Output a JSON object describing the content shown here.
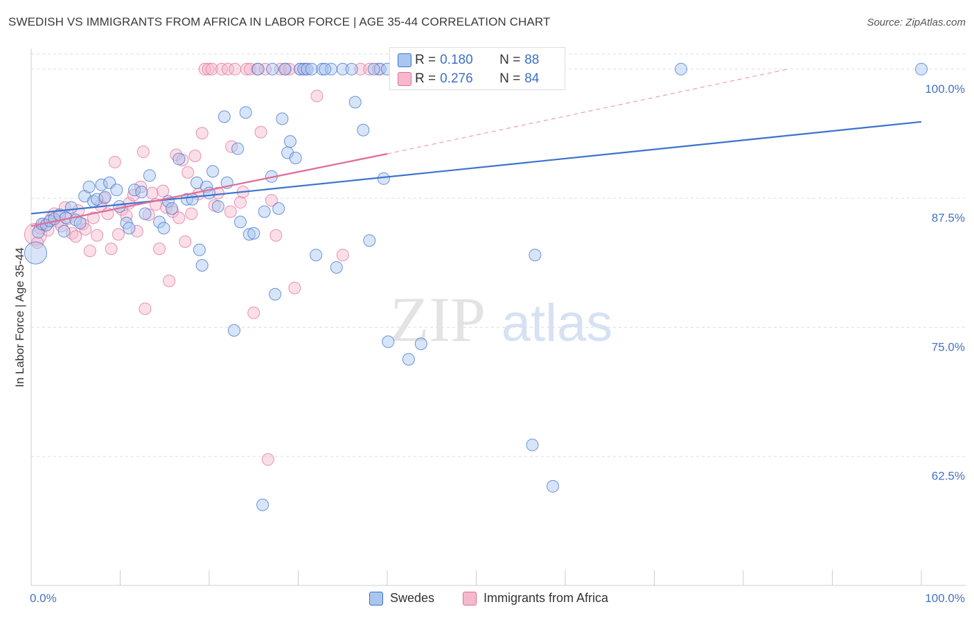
{
  "title": "SWEDISH VS IMMIGRANTS FROM AFRICA IN LABOR FORCE | AGE 35-44 CORRELATION CHART",
  "source": "Source: ZipAtlas.com",
  "watermark": {
    "zip": "ZIP",
    "atlas": "atlas"
  },
  "stats": [
    {
      "r_label": "R = ",
      "r_value": "0.180",
      "n_label": "N = ",
      "n_value": "88"
    },
    {
      "r_label": "R = ",
      "r_value": "0.276",
      "n_label": "N = ",
      "n_value": "84"
    }
  ],
  "legend": {
    "swedes": "Swedes",
    "africa": "Immigrants from Africa"
  },
  "colors": {
    "blue": "#3b72cf",
    "blue_fill": "#a9c6ef",
    "pink": "#e07099",
    "pink_fill": "#f5b8cc",
    "grid": "#dddddd",
    "axis_text": "#4472c4"
  },
  "chart_data": {
    "type": "scatter",
    "title": "SWEDISH VS IMMIGRANTS FROM AFRICA IN LABOR FORCE | AGE 35-44 CORRELATION CHART",
    "xlabel": "",
    "ylabel": "In Labor Force | Age 35-44",
    "xlim": [
      0,
      100
    ],
    "ylim": [
      50,
      102
    ],
    "x_tick_labels": [
      "0.0%",
      "100.0%"
    ],
    "y_ticks": [
      {
        "value": 100.0,
        "label": "100.0%"
      },
      {
        "value": 87.5,
        "label": "87.5%"
      },
      {
        "value": 75.0,
        "label": "75.0%"
      },
      {
        "value": 62.5,
        "label": "62.5%"
      }
    ],
    "series": [
      {
        "name": "Swedes",
        "r": 0.18,
        "n": 88,
        "trend": {
          "x": [
            0,
            100
          ],
          "y": [
            86.0,
            94.9
          ]
        },
        "points": [
          [
            0.5,
            82.2
          ],
          [
            0.8,
            84.2
          ],
          [
            1.2,
            85.0
          ],
          [
            1.7,
            84.9
          ],
          [
            2.1,
            85.3
          ],
          [
            2.6,
            85.5
          ],
          [
            3.2,
            85.9
          ],
          [
            3.7,
            84.3
          ],
          [
            3.9,
            85.6
          ],
          [
            4.5,
            86.6
          ],
          [
            5.0,
            85.4
          ],
          [
            5.5,
            85.1
          ],
          [
            6.0,
            87.7
          ],
          [
            6.5,
            88.6
          ],
          [
            7.0,
            87.2
          ],
          [
            7.4,
            87.4
          ],
          [
            7.9,
            88.8
          ],
          [
            8.3,
            87.6
          ],
          [
            8.8,
            89.0
          ],
          [
            9.6,
            88.3
          ],
          [
            9.9,
            86.7
          ],
          [
            10.7,
            85.1
          ],
          [
            11.0,
            84.6
          ],
          [
            11.6,
            88.3
          ],
          [
            12.4,
            88.1
          ],
          [
            12.8,
            86.0
          ],
          [
            13.3,
            89.7
          ],
          [
            14.4,
            85.2
          ],
          [
            14.9,
            84.6
          ],
          [
            15.4,
            87.2
          ],
          [
            15.8,
            86.5
          ],
          [
            16.6,
            91.3
          ],
          [
            17.5,
            87.4
          ],
          [
            18.1,
            87.4
          ],
          [
            18.6,
            89.0
          ],
          [
            18.9,
            82.5
          ],
          [
            19.2,
            81.0
          ],
          [
            19.7,
            88.6
          ],
          [
            20.0,
            88.0
          ],
          [
            20.4,
            90.1
          ],
          [
            21.0,
            86.7
          ],
          [
            21.7,
            95.4
          ],
          [
            22.0,
            89.0
          ],
          [
            22.8,
            74.7
          ],
          [
            23.2,
            92.3
          ],
          [
            23.5,
            85.2
          ],
          [
            24.1,
            95.8
          ],
          [
            24.5,
            84.0
          ],
          [
            25.0,
            84.1
          ],
          [
            26.0,
            57.8
          ],
          [
            26.2,
            86.2
          ],
          [
            27.0,
            89.6
          ],
          [
            27.4,
            78.2
          ],
          [
            27.8,
            86.5
          ],
          [
            28.2,
            95.2
          ],
          [
            28.8,
            91.9
          ],
          [
            29.1,
            93.0
          ],
          [
            29.7,
            91.4
          ],
          [
            30.2,
            100
          ],
          [
            30.6,
            100
          ],
          [
            31.0,
            100
          ],
          [
            32.0,
            82.0
          ],
          [
            32.7,
            100
          ],
          [
            33.7,
            100
          ],
          [
            34.3,
            80.8
          ],
          [
            35.0,
            100
          ],
          [
            36.4,
            96.8
          ],
          [
            37.3,
            94.1
          ],
          [
            38.0,
            83.4
          ],
          [
            39.2,
            100
          ],
          [
            39.6,
            89.4
          ],
          [
            40.1,
            73.6
          ],
          [
            41.0,
            100
          ],
          [
            42.4,
            71.9
          ],
          [
            43.8,
            73.4
          ],
          [
            56.3,
            63.6
          ],
          [
            56.6,
            82.0
          ],
          [
            58.6,
            59.6
          ],
          [
            73.0,
            100
          ],
          [
            100.0,
            100
          ],
          [
            28.5,
            100
          ],
          [
            27.1,
            100
          ],
          [
            31.5,
            100
          ],
          [
            33.0,
            100
          ],
          [
            25.5,
            100
          ],
          [
            36.0,
            100
          ],
          [
            38.5,
            100
          ],
          [
            40.0,
            100
          ]
        ]
      },
      {
        "name": "Immigrants from Africa",
        "r": 0.276,
        "n": 84,
        "trend": {
          "x": [
            0,
            40
          ],
          "y": [
            84.8,
            91.8
          ]
        },
        "trend_dashed": {
          "x": [
            40,
            85
          ],
          "y": [
            91.8,
            100.0
          ]
        },
        "points": [
          [
            0.5,
            84.0
          ],
          [
            0.7,
            83.2
          ],
          [
            1.0,
            84.6
          ],
          [
            1.4,
            85.0
          ],
          [
            1.9,
            84.4
          ],
          [
            2.3,
            85.6
          ],
          [
            2.6,
            86.0
          ],
          [
            3.0,
            85.2
          ],
          [
            3.4,
            84.8
          ],
          [
            3.8,
            86.6
          ],
          [
            4.1,
            85.5
          ],
          [
            4.6,
            84.1
          ],
          [
            5.0,
            83.8
          ],
          [
            5.3,
            86.3
          ],
          [
            5.8,
            85.0
          ],
          [
            6.1,
            84.5
          ],
          [
            6.6,
            82.4
          ],
          [
            7.0,
            85.6
          ],
          [
            7.4,
            83.9
          ],
          [
            7.8,
            86.8
          ],
          [
            8.2,
            87.5
          ],
          [
            8.6,
            86.0
          ],
          [
            9.0,
            82.6
          ],
          [
            9.4,
            91.0
          ],
          [
            9.8,
            84.0
          ],
          [
            10.2,
            86.4
          ],
          [
            10.7,
            85.8
          ],
          [
            11.0,
            87.0
          ],
          [
            11.5,
            87.8
          ],
          [
            11.9,
            84.3
          ],
          [
            12.3,
            88.6
          ],
          [
            12.6,
            92.0
          ],
          [
            12.8,
            76.8
          ],
          [
            13.2,
            85.9
          ],
          [
            13.6,
            88.0
          ],
          [
            14.0,
            86.9
          ],
          [
            14.4,
            82.6
          ],
          [
            14.8,
            88.2
          ],
          [
            15.2,
            86.6
          ],
          [
            15.5,
            79.5
          ],
          [
            15.9,
            86.2
          ],
          [
            16.3,
            91.7
          ],
          [
            16.6,
            85.6
          ],
          [
            17.0,
            91.2
          ],
          [
            17.3,
            83.3
          ],
          [
            17.6,
            90.0
          ],
          [
            18.0,
            86.0
          ],
          [
            18.4,
            91.6
          ],
          [
            18.8,
            87.9
          ],
          [
            19.2,
            93.8
          ],
          [
            19.5,
            100
          ],
          [
            19.9,
            100
          ],
          [
            20.3,
            100
          ],
          [
            20.6,
            86.8
          ],
          [
            21.0,
            88.0
          ],
          [
            21.4,
            100
          ],
          [
            22.1,
            100
          ],
          [
            22.4,
            86.2
          ],
          [
            22.9,
            100
          ],
          [
            23.5,
            87.1
          ],
          [
            23.8,
            88.1
          ],
          [
            24.2,
            100
          ],
          [
            24.6,
            100
          ],
          [
            25.0,
            76.4
          ],
          [
            25.4,
            100
          ],
          [
            25.8,
            93.9
          ],
          [
            26.3,
            100
          ],
          [
            26.6,
            62.2
          ],
          [
            27.0,
            87.3
          ],
          [
            27.5,
            83.9
          ],
          [
            28.0,
            100
          ],
          [
            28.6,
            100
          ],
          [
            29.0,
            100
          ],
          [
            29.6,
            78.8
          ],
          [
            30.2,
            100
          ],
          [
            30.8,
            100
          ],
          [
            32.1,
            97.4
          ],
          [
            35.0,
            82.0
          ],
          [
            37.0,
            100
          ],
          [
            38.0,
            100
          ],
          [
            39.0,
            100
          ],
          [
            42.5,
            100
          ],
          [
            44.0,
            100
          ],
          [
            22.5,
            92.5
          ]
        ]
      }
    ]
  }
}
